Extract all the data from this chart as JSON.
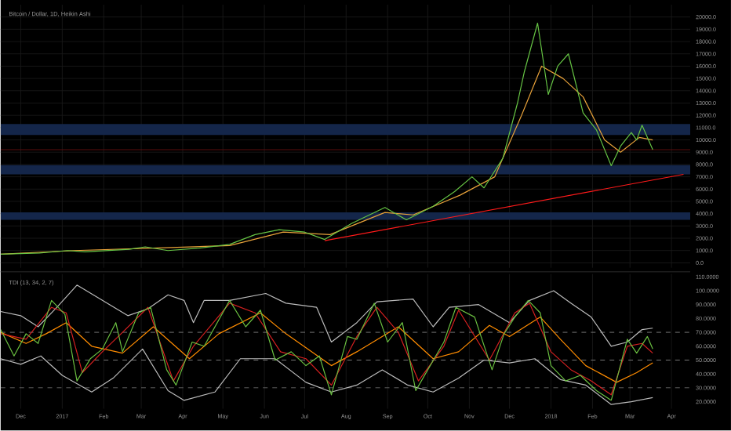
{
  "chart_data": [
    {
      "type": "line",
      "title": "Bitcoin / Dollar, 1D, Heikin Ashi",
      "grid": true,
      "tick_labels": "y",
      "xlim": [
        "2016-11-16",
        "2018-04-15"
      ],
      "xticks": [
        {
          "value": "2016-12-01",
          "label": null
        },
        {
          "value": "2017-01-01",
          "label": null
        },
        {
          "value": "2017-02-01",
          "label": null
        },
        {
          "value": "2017-03-01",
          "label": null
        },
        {
          "value": "2017-04-01",
          "label": null
        },
        {
          "value": "2017-05-01",
          "label": null
        },
        {
          "value": "2017-06-01",
          "label": null
        },
        {
          "value": "2017-07-01",
          "label": null
        },
        {
          "value": "2017-08-01",
          "label": null
        },
        {
          "value": "2017-09-01",
          "label": null
        },
        {
          "value": "2017-10-01",
          "label": null
        },
        {
          "value": "2017-11-01",
          "label": null
        },
        {
          "value": "2017-12-01",
          "label": null
        },
        {
          "value": "2018-01-01",
          "label": null
        },
        {
          "value": "2018-02-01",
          "label": null
        },
        {
          "value": "2018-03-01",
          "label": null
        },
        {
          "value": "2018-04-01",
          "label": null
        }
      ],
      "ylim": [
        -400,
        21000
      ],
      "yticks": [
        {
          "value": 0,
          "label": "0.0"
        },
        {
          "value": 1000,
          "label": "1000.0"
        },
        {
          "value": 2000,
          "label": "2000.0"
        },
        {
          "value": 3000,
          "label": "3000.0"
        },
        {
          "value": 4000,
          "label": "4000.0"
        },
        {
          "value": 5000,
          "label": "5000.0"
        },
        {
          "value": 6000,
          "label": "6000.0"
        },
        {
          "value": 7000,
          "label": "7000.0"
        },
        {
          "value": 8000,
          "label": "8000.0"
        },
        {
          "value": 9000,
          "label": "9000.0"
        },
        {
          "value": 10000,
          "label": "10000.0"
        },
        {
          "value": 11000,
          "label": "11000.0"
        },
        {
          "value": 12000,
          "label": "12000.0"
        },
        {
          "value": 13000,
          "label": "13000.0"
        },
        {
          "value": 14000,
          "label": "14000.0"
        },
        {
          "value": 15000,
          "label": "15000.0"
        },
        {
          "value": 16000,
          "label": "16000.0"
        },
        {
          "value": 17000,
          "label": "17000.0"
        },
        {
          "value": 18000,
          "label": "18000.0"
        },
        {
          "value": 19000,
          "label": "19000.0"
        },
        {
          "value": 20000,
          "label": "20000.0"
        }
      ],
      "bands": [
        {
          "axis": "y",
          "from": 10400,
          "to": 11300,
          "color": "#14264a"
        },
        {
          "axis": "y",
          "from": 7200,
          "to": 7950,
          "color": "#14264a"
        },
        {
          "axis": "y",
          "from": 3500,
          "to": 4100,
          "color": "#14264a"
        }
      ],
      "ref_lines": [
        {
          "axis": "y",
          "value": 9200,
          "color": "#6b1010",
          "line_style": "solid"
        }
      ],
      "series": [
        {
          "color": "#e8a23a",
          "x": [
            "2016-11-16",
            "2017-01-10",
            "2017-03-10",
            "2017-05-06",
            "2017-06-15",
            "2017-07-20",
            "2017-08-30",
            "2017-09-20",
            "2017-10-25",
            "2017-11-20",
            "2017-12-10",
            "2017-12-25",
            "2018-01-10",
            "2018-01-25",
            "2018-02-10",
            "2018-02-22",
            "2018-03-08",
            "2018-03-18"
          ],
          "values": [
            700,
            1000,
            1200,
            1400,
            2500,
            2300,
            4100,
            3900,
            5500,
            7000,
            12000,
            16000,
            15000,
            13500,
            10000,
            9000,
            10200,
            10000
          ]
        },
        {
          "color": "#66c444",
          "x": [
            "2016-11-16",
            "2016-12-15",
            "2017-01-05",
            "2017-01-18",
            "2017-02-20",
            "2017-03-04",
            "2017-03-21",
            "2017-04-13",
            "2017-05-06",
            "2017-05-25",
            "2017-06-12",
            "2017-07-01",
            "2017-07-16",
            "2017-08-05",
            "2017-08-30",
            "2017-09-15",
            "2017-10-05",
            "2017-10-21",
            "2017-11-03",
            "2017-11-12",
            "2017-11-26",
            "2017-12-07",
            "2017-12-12",
            "2017-12-22",
            "2017-12-30",
            "2018-01-06",
            "2018-01-14",
            "2018-01-25",
            "2018-02-04",
            "2018-02-15",
            "2018-02-22",
            "2018-03-02",
            "2018-03-06",
            "2018-03-10",
            "2018-03-18"
          ],
          "values": [
            700,
            800,
            1000,
            900,
            1100,
            1300,
            1000,
            1200,
            1500,
            2300,
            2700,
            2500,
            1900,
            3200,
            4500,
            3500,
            4600,
            5800,
            7000,
            6100,
            8500,
            13000,
            15500,
            19500,
            13700,
            16000,
            17000,
            12200,
            10800,
            7900,
            9500,
            10600,
            10000,
            11200,
            9200
          ]
        },
        {
          "color": "#ff1a1a",
          "x": [
            "2017-07-16",
            "2018-04-10"
          ],
          "values": [
            1800,
            7200
          ]
        }
      ]
    },
    {
      "type": "line",
      "title": "TDI (13, 34, 2, 7)",
      "grid": "x",
      "xlim": [
        "2016-11-16",
        "2018-04-15"
      ],
      "xticks": [
        {
          "value": "2016-12-01",
          "label": "Dec"
        },
        {
          "value": "2017-01-01",
          "label": "2017"
        },
        {
          "value": "2017-02-01",
          "label": "Feb"
        },
        {
          "value": "2017-03-01",
          "label": "Mar"
        },
        {
          "value": "2017-04-01",
          "label": "Apr"
        },
        {
          "value": "2017-05-01",
          "label": "May"
        },
        {
          "value": "2017-06-01",
          "label": "Jun"
        },
        {
          "value": "2017-07-01",
          "label": "Jul"
        },
        {
          "value": "2017-08-01",
          "label": "Aug"
        },
        {
          "value": "2017-09-01",
          "label": "Sep"
        },
        {
          "value": "2017-10-01",
          "label": "Oct"
        },
        {
          "value": "2017-11-01",
          "label": "Nov"
        },
        {
          "value": "2017-12-01",
          "label": "Dec"
        },
        {
          "value": "2018-01-01",
          "label": "2018"
        },
        {
          "value": "2018-02-01",
          "label": "Feb"
        },
        {
          "value": "2018-03-01",
          "label": "Mar"
        },
        {
          "value": "2018-04-01",
          "label": "Apr"
        }
      ],
      "ylim": [
        15,
        112
      ],
      "yticks": [
        {
          "value": 20,
          "label": "20.0000"
        },
        {
          "value": 30,
          "label": "30.0000"
        },
        {
          "value": 40,
          "label": "40.0000"
        },
        {
          "value": 50,
          "label": "50.0000"
        },
        {
          "value": 60,
          "label": "60.0000"
        },
        {
          "value": 70,
          "label": "70.0000"
        },
        {
          "value": 80,
          "label": "80.0000"
        },
        {
          "value": 90,
          "label": "90.0000"
        },
        {
          "value": 100,
          "label": "100.0000"
        },
        {
          "value": 110,
          "label": "110.0000"
        }
      ],
      "ref_lines": [
        {
          "axis": "y",
          "value": 70,
          "color": "#777777",
          "line_style": "dashed"
        },
        {
          "axis": "y",
          "value": 50,
          "color": "#777777",
          "line_style": "dashed"
        },
        {
          "axis": "y",
          "value": 30,
          "color": "#777777",
          "line_style": "dashed"
        }
      ],
      "series": [
        {
          "color": "#bbbbbb",
          "x": [
            "2016-11-16",
            "2016-12-01",
            "2016-12-14",
            "2016-12-28",
            "2017-01-12",
            "2017-01-31",
            "2017-02-19",
            "2017-03-06",
            "2017-03-21",
            "2017-04-02",
            "2017-04-09",
            "2017-04-17",
            "2017-05-06",
            "2017-06-02",
            "2017-06-17",
            "2017-07-10",
            "2017-07-21",
            "2017-08-09",
            "2017-08-24",
            "2017-09-20",
            "2017-10-05",
            "2017-10-17",
            "2017-11-08",
            "2017-12-01",
            "2017-12-16",
            "2018-01-03",
            "2018-01-16",
            "2018-01-31",
            "2018-02-15",
            "2018-02-27",
            "2018-03-10",
            "2018-03-18"
          ],
          "values": [
            85,
            82,
            74,
            88,
            104,
            93,
            82,
            87,
            97,
            93,
            77,
            93,
            93,
            98,
            91,
            88,
            63,
            77,
            92,
            94,
            74,
            88,
            90,
            77,
            93,
            100,
            91,
            81,
            60,
            63,
            72,
            73
          ]
        },
        {
          "color": "#bbbbbb",
          "x": [
            "2016-11-16",
            "2016-12-01",
            "2016-12-16",
            "2017-01-01",
            "2017-01-23",
            "2017-02-08",
            "2017-03-02",
            "2017-03-21",
            "2017-04-02",
            "2017-04-25",
            "2017-05-14",
            "2017-06-09",
            "2017-07-02",
            "2017-07-21",
            "2017-08-09",
            "2017-08-28",
            "2017-09-16",
            "2017-10-05",
            "2017-10-24",
            "2017-11-12",
            "2017-12-01",
            "2017-12-20",
            "2018-01-08",
            "2018-01-27",
            "2018-02-15",
            "2018-03-02",
            "2018-03-18"
          ],
          "values": [
            51,
            47,
            53,
            39,
            27,
            37,
            58,
            28,
            21,
            27,
            51,
            51,
            34,
            27,
            32,
            43,
            32,
            27,
            37,
            50,
            48,
            51,
            36,
            32,
            18,
            20,
            23
          ]
        },
        {
          "color": "#ff8c00",
          "x": [
            "2016-11-16",
            "2016-12-05",
            "2016-12-20",
            "2017-01-04",
            "2017-01-23",
            "2017-02-15",
            "2017-03-10",
            "2017-04-06",
            "2017-04-28",
            "2017-05-29",
            "2017-06-17",
            "2017-07-21",
            "2017-08-09",
            "2017-09-09",
            "2017-10-05",
            "2017-10-24",
            "2017-11-16",
            "2017-12-01",
            "2017-12-24",
            "2018-01-08",
            "2018-01-27",
            "2018-02-19",
            "2018-03-06",
            "2018-03-18"
          ],
          "values": [
            70,
            62,
            69,
            77,
            60,
            55,
            74,
            51,
            69,
            84,
            69,
            46,
            56,
            74,
            51,
            56,
            75,
            67,
            81,
            65,
            46,
            34,
            41,
            48
          ]
        },
        {
          "color": "#d62020",
          "x": [
            "2016-11-16",
            "2016-12-05",
            "2016-12-24",
            "2017-01-04",
            "2017-01-16",
            "2017-01-31",
            "2017-02-15",
            "2017-03-06",
            "2017-03-25",
            "2017-04-09",
            "2017-05-06",
            "2017-05-25",
            "2017-06-13",
            "2017-07-02",
            "2017-07-21",
            "2017-08-09",
            "2017-08-24",
            "2017-09-09",
            "2017-09-24",
            "2017-10-13",
            "2017-10-24",
            "2017-11-16",
            "2017-12-05",
            "2017-12-16",
            "2018-01-01",
            "2018-01-16",
            "2018-01-31",
            "2018-02-15",
            "2018-02-27",
            "2018-03-10",
            "2018-03-18"
          ],
          "values": [
            69,
            65,
            88,
            84,
            41,
            56,
            70,
            88,
            35,
            60,
            91,
            84,
            56,
            51,
            32,
            67,
            88,
            70,
            35,
            60,
            86,
            50,
            84,
            91,
            56,
            43,
            35,
            25,
            60,
            62,
            55
          ]
        },
        {
          "color": "#6abf40",
          "x": [
            "2016-11-16",
            "2016-11-26",
            "2016-12-05",
            "2016-12-14",
            "2016-12-24",
            "2017-01-03",
            "2017-01-12",
            "2017-01-22",
            "2017-01-31",
            "2017-02-10",
            "2017-02-15",
            "2017-02-27",
            "2017-03-08",
            "2017-03-20",
            "2017-03-27",
            "2017-04-08",
            "2017-04-17",
            "2017-05-06",
            "2017-05-18",
            "2017-05-29",
            "2017-06-09",
            "2017-06-21",
            "2017-07-02",
            "2017-07-12",
            "2017-07-21",
            "2017-08-02",
            "2017-08-09",
            "2017-08-22",
            "2017-09-01",
            "2017-09-12",
            "2017-09-22",
            "2017-10-01",
            "2017-10-13",
            "2017-10-22",
            "2017-11-05",
            "2017-11-18",
            "2017-11-27",
            "2017-12-05",
            "2017-12-15",
            "2017-12-24",
            "2018-01-01",
            "2018-01-12",
            "2018-01-23",
            "2018-02-04",
            "2018-02-15",
            "2018-02-27",
            "2018-03-06",
            "2018-03-14",
            "2018-03-18"
          ],
          "values": [
            72,
            53,
            69,
            62,
            93,
            83,
            35,
            51,
            58,
            77,
            56,
            84,
            88,
            43,
            32,
            63,
            60,
            93,
            74,
            86,
            50,
            56,
            46,
            53,
            25,
            67,
            65,
            91,
            63,
            77,
            28,
            43,
            63,
            88,
            81,
            43,
            69,
            81,
            93,
            84,
            46,
            35,
            39,
            28,
            21,
            65,
            55,
            67,
            58
          ]
        }
      ]
    }
  ]
}
